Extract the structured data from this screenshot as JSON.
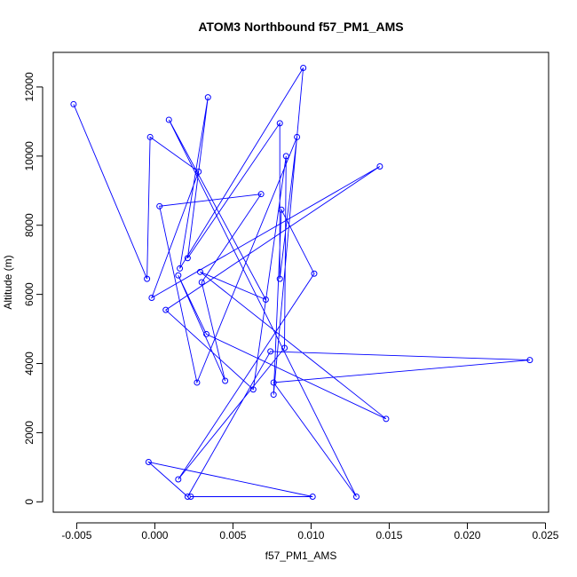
{
  "chart_data": {
    "type": "line",
    "title": "ATOM3 Northbound f57_PM1_AMS",
    "xlabel": "f57_PM1_AMS",
    "ylabel": "Altitude (m)",
    "xlim": [
      -0.0065,
      0.0252
    ],
    "ylim": [
      -300,
      13000
    ],
    "x_ticks": [
      -0.005,
      0.0,
      0.005,
      0.01,
      0.015,
      0.02,
      0.025
    ],
    "x_tick_labels": [
      "-0.005",
      "0.000",
      "0.005",
      "0.010",
      "0.015",
      "0.020",
      "0.025"
    ],
    "y_ticks": [
      0,
      2000,
      4000,
      6000,
      8000,
      10000,
      12000
    ],
    "y_tick_labels": [
      "0",
      "2000",
      "4000",
      "6000",
      "8000",
      "10000",
      "12000"
    ],
    "series": [
      {
        "color": "#0000ff",
        "marker": "open-circle",
        "points": [
          [
            -0.0052,
            11500
          ],
          [
            -0.0005,
            6450
          ],
          [
            -0.0003,
            10550
          ],
          [
            0.0028,
            9550
          ],
          [
            -0.0002,
            5900
          ],
          [
            0.0144,
            9700
          ],
          [
            0.0007,
            5550
          ],
          [
            0.0063,
            3250
          ],
          [
            0.0084,
            10000
          ],
          [
            0.0083,
            4450
          ],
          [
            0.0015,
            650
          ],
          [
            0.0102,
            6600
          ],
          [
            0.0081,
            8450
          ],
          [
            0.0076,
            3100
          ],
          [
            0.0095,
            12550
          ],
          [
            0.0016,
            6750
          ],
          [
            0.0034,
            11700
          ],
          [
            0.0021,
            7050
          ],
          [
            0.008,
            10950
          ],
          [
            0.008,
            6450
          ],
          [
            0.0091,
            10550
          ],
          [
            0.0027,
            3450
          ],
          [
            0.0003,
            8550
          ],
          [
            0.0068,
            8900
          ],
          [
            0.003,
            6350
          ],
          [
            0.0045,
            3500
          ],
          [
            0.0015,
            6550
          ],
          [
            0.0033,
            4850
          ],
          [
            0.0148,
            2400
          ],
          [
            0.0029,
            6650
          ],
          [
            0.0071,
            5850
          ],
          [
            0.0009,
            11050
          ],
          [
            0.0129,
            150
          ],
          [
            0.0076,
            3450
          ],
          [
            0.024,
            4100
          ],
          [
            0.0074,
            4350
          ],
          [
            0.0021,
            150
          ],
          [
            -0.0004,
            1150
          ],
          [
            0.0101,
            150
          ],
          [
            0.0023,
            150
          ]
        ]
      }
    ]
  }
}
